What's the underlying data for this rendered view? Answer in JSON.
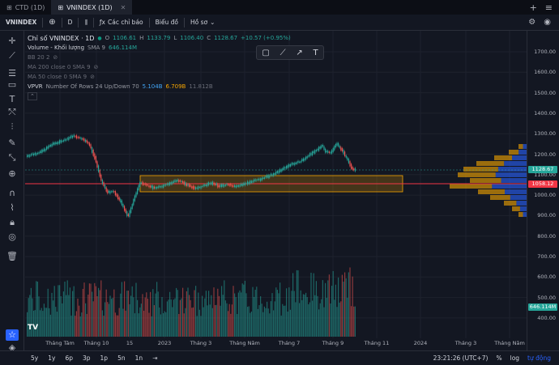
{
  "tabs": [
    {
      "label": "CTD (1D)",
      "active": false
    },
    {
      "label": "VNINDEX (1D)",
      "active": true
    }
  ],
  "toolbar": {
    "symbol": "VNINDEX",
    "interval": "D",
    "indicators_label": "Các chỉ báo",
    "chart_label": "Biểu đồ",
    "profile_label": "Hồ sơ"
  },
  "legend": {
    "title": "Chỉ số VNINDEX · 1D",
    "open_label": "O",
    "open": "1106.61",
    "high_label": "H",
    "high": "1133.79",
    "low_label": "L",
    "low": "1106.40",
    "close_label": "C",
    "close": "1128.67",
    "change": "+10.57 (+0.95%)",
    "volume_label": "Volume - Khối lượng",
    "volume_params": "SMA 9",
    "volume_value": "646.114M",
    "bb": "BB 20 2",
    "ma200": "MA 200 close 0 SMA 9",
    "ma50": "MA 50 close 0 SMA 9",
    "vpvr_label": "VPVR",
    "vpvr_params": "Number Of Rows 24 Up/Down 70",
    "vpvr_up": "5.104B",
    "vpvr_down": "6.709B",
    "vpvr_total": "11.812B"
  },
  "price_axis": [
    "1700.00",
    "1600.00",
    "1500.00",
    "1400.00",
    "1300.00",
    "1200.00",
    "1100.00",
    "1000.00",
    "900.00",
    "800.00",
    "700.00",
    "600.00",
    "500.00",
    "400.00"
  ],
  "price_badges": {
    "last": "1128.67",
    "line": "1058.12",
    "volume": "646.114M"
  },
  "time_axis": [
    "Tháng Tám",
    "Tháng 10",
    "15",
    "2023",
    "Tháng 3",
    "Tháng Năm",
    "Tháng 7",
    "Tháng 9",
    "Tháng 11",
    "2024",
    "Tháng 3",
    "Tháng Năm"
  ],
  "bottombar": {
    "ranges": [
      "5y",
      "1y",
      "6p",
      "3p",
      "1p",
      "5n",
      "1n"
    ],
    "clock": "23:21:26 (UTC+7)",
    "percent": "%",
    "log": "log",
    "auto": "tự động"
  },
  "colors": {
    "up": "#26a69a",
    "down": "#ef5350",
    "line": "#f23645",
    "box": "#f7a600",
    "vpvr_up": "#2962ff",
    "vpvr_down": "#f7a600"
  }
}
